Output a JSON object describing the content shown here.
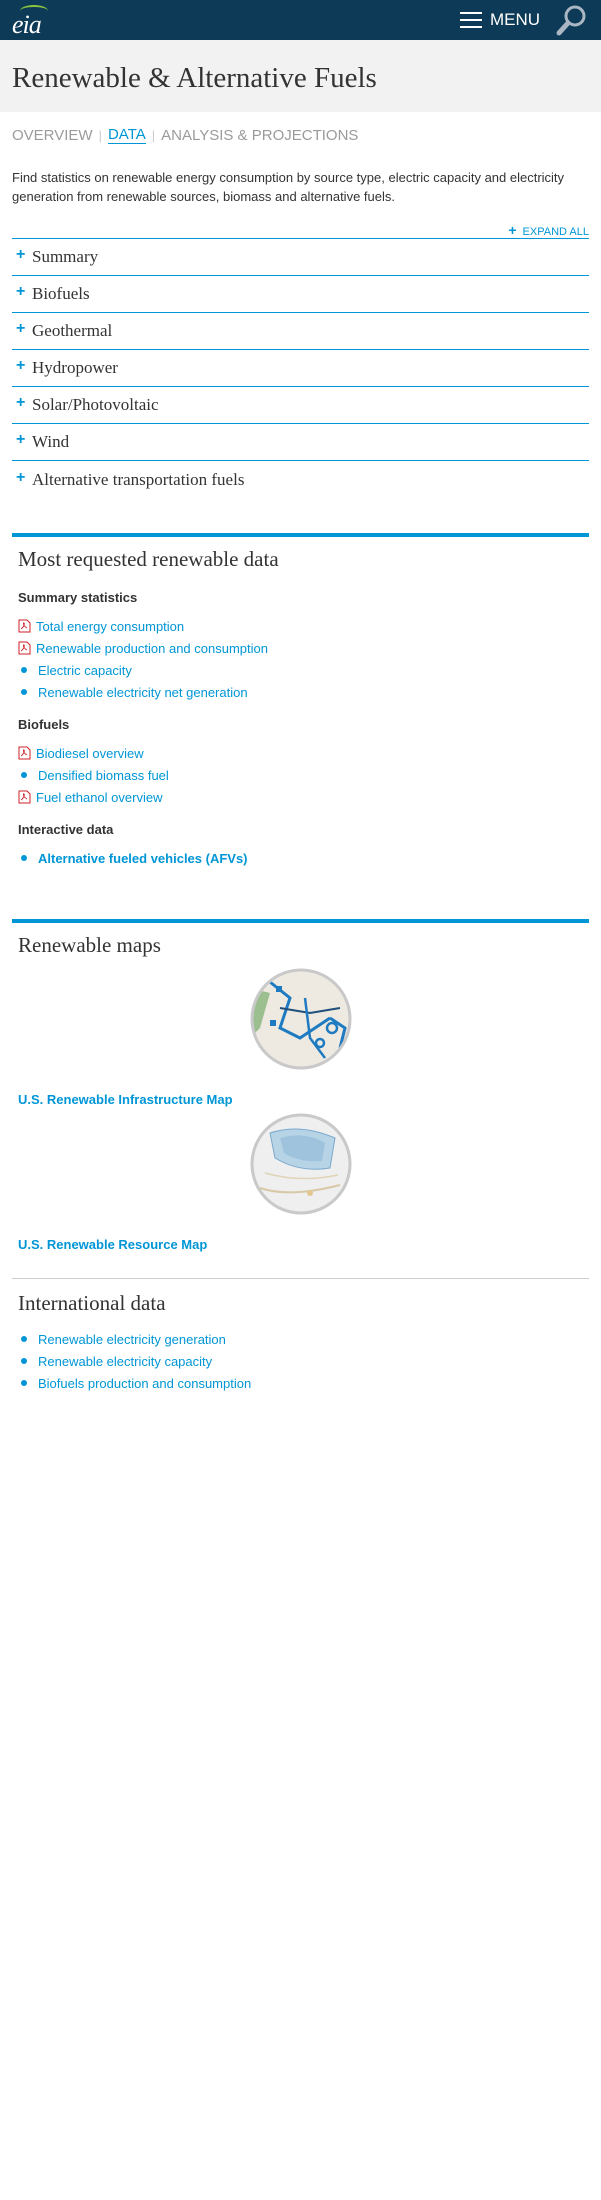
{
  "header": {
    "logo_text": "eia",
    "menu_label": "MENU"
  },
  "page": {
    "title": "Renewable & Alternative Fuels"
  },
  "subnav": {
    "tabs": [
      {
        "label": "OVERVIEW",
        "active": false
      },
      {
        "label": "DATA",
        "active": true
      },
      {
        "label": "ANALYSIS & PROJECTIONS",
        "active": false
      }
    ]
  },
  "intro": {
    "text": "Find statistics on renewable energy consumption by source type, electric capacity and electricity generation from renewable sources, biomass and alternative fuels."
  },
  "accordion": {
    "expand_all_label": "EXPAND ALL",
    "items": [
      {
        "label": "Summary"
      },
      {
        "label": "Biofuels"
      },
      {
        "label": "Geothermal"
      },
      {
        "label": "Hydropower"
      },
      {
        "label": "Solar/Photovoltaic"
      },
      {
        "label": "Wind"
      },
      {
        "label": "Alternative transportation fuels"
      }
    ]
  },
  "most_requested": {
    "title": "Most requested renewable data",
    "summary": {
      "heading": "Summary statistics",
      "links": [
        {
          "label": "Total energy consumption",
          "icon": "pdf-icon"
        },
        {
          "label": "Renewable production and consumption",
          "icon": "pdf-icon"
        },
        {
          "label": "Electric capacity",
          "icon": "bullet"
        },
        {
          "label": "Renewable electricity net generation",
          "icon": "bullet"
        }
      ]
    },
    "biofuels": {
      "heading": "Biofuels",
      "links": [
        {
          "label": "Biodiesel overview",
          "icon": "pdf-icon"
        },
        {
          "label": "Densified biomass fuel",
          "icon": "bullet"
        },
        {
          "label": "Fuel ethanol overview",
          "icon": "pdf-icon"
        }
      ]
    },
    "interactive": {
      "heading": "Interactive data",
      "links": [
        {
          "label": "Alternative fueled vehicles (AFVs)",
          "icon": "bullet"
        }
      ]
    }
  },
  "maps": {
    "title": "Renewable maps",
    "infrastructure_label": "U.S. Renewable Infrastructure Map",
    "resource_label": "U.S. Renewable Resource Map"
  },
  "international": {
    "title": "International data",
    "links": [
      {
        "label": "Renewable electricity generation"
      },
      {
        "label": "Renewable electricity capacity"
      },
      {
        "label": "Biofuels production and consumption"
      }
    ]
  },
  "colors": {
    "header_bg": "#0c3a57",
    "accent": "#0096d6",
    "title_bg": "#f2f2f2"
  }
}
